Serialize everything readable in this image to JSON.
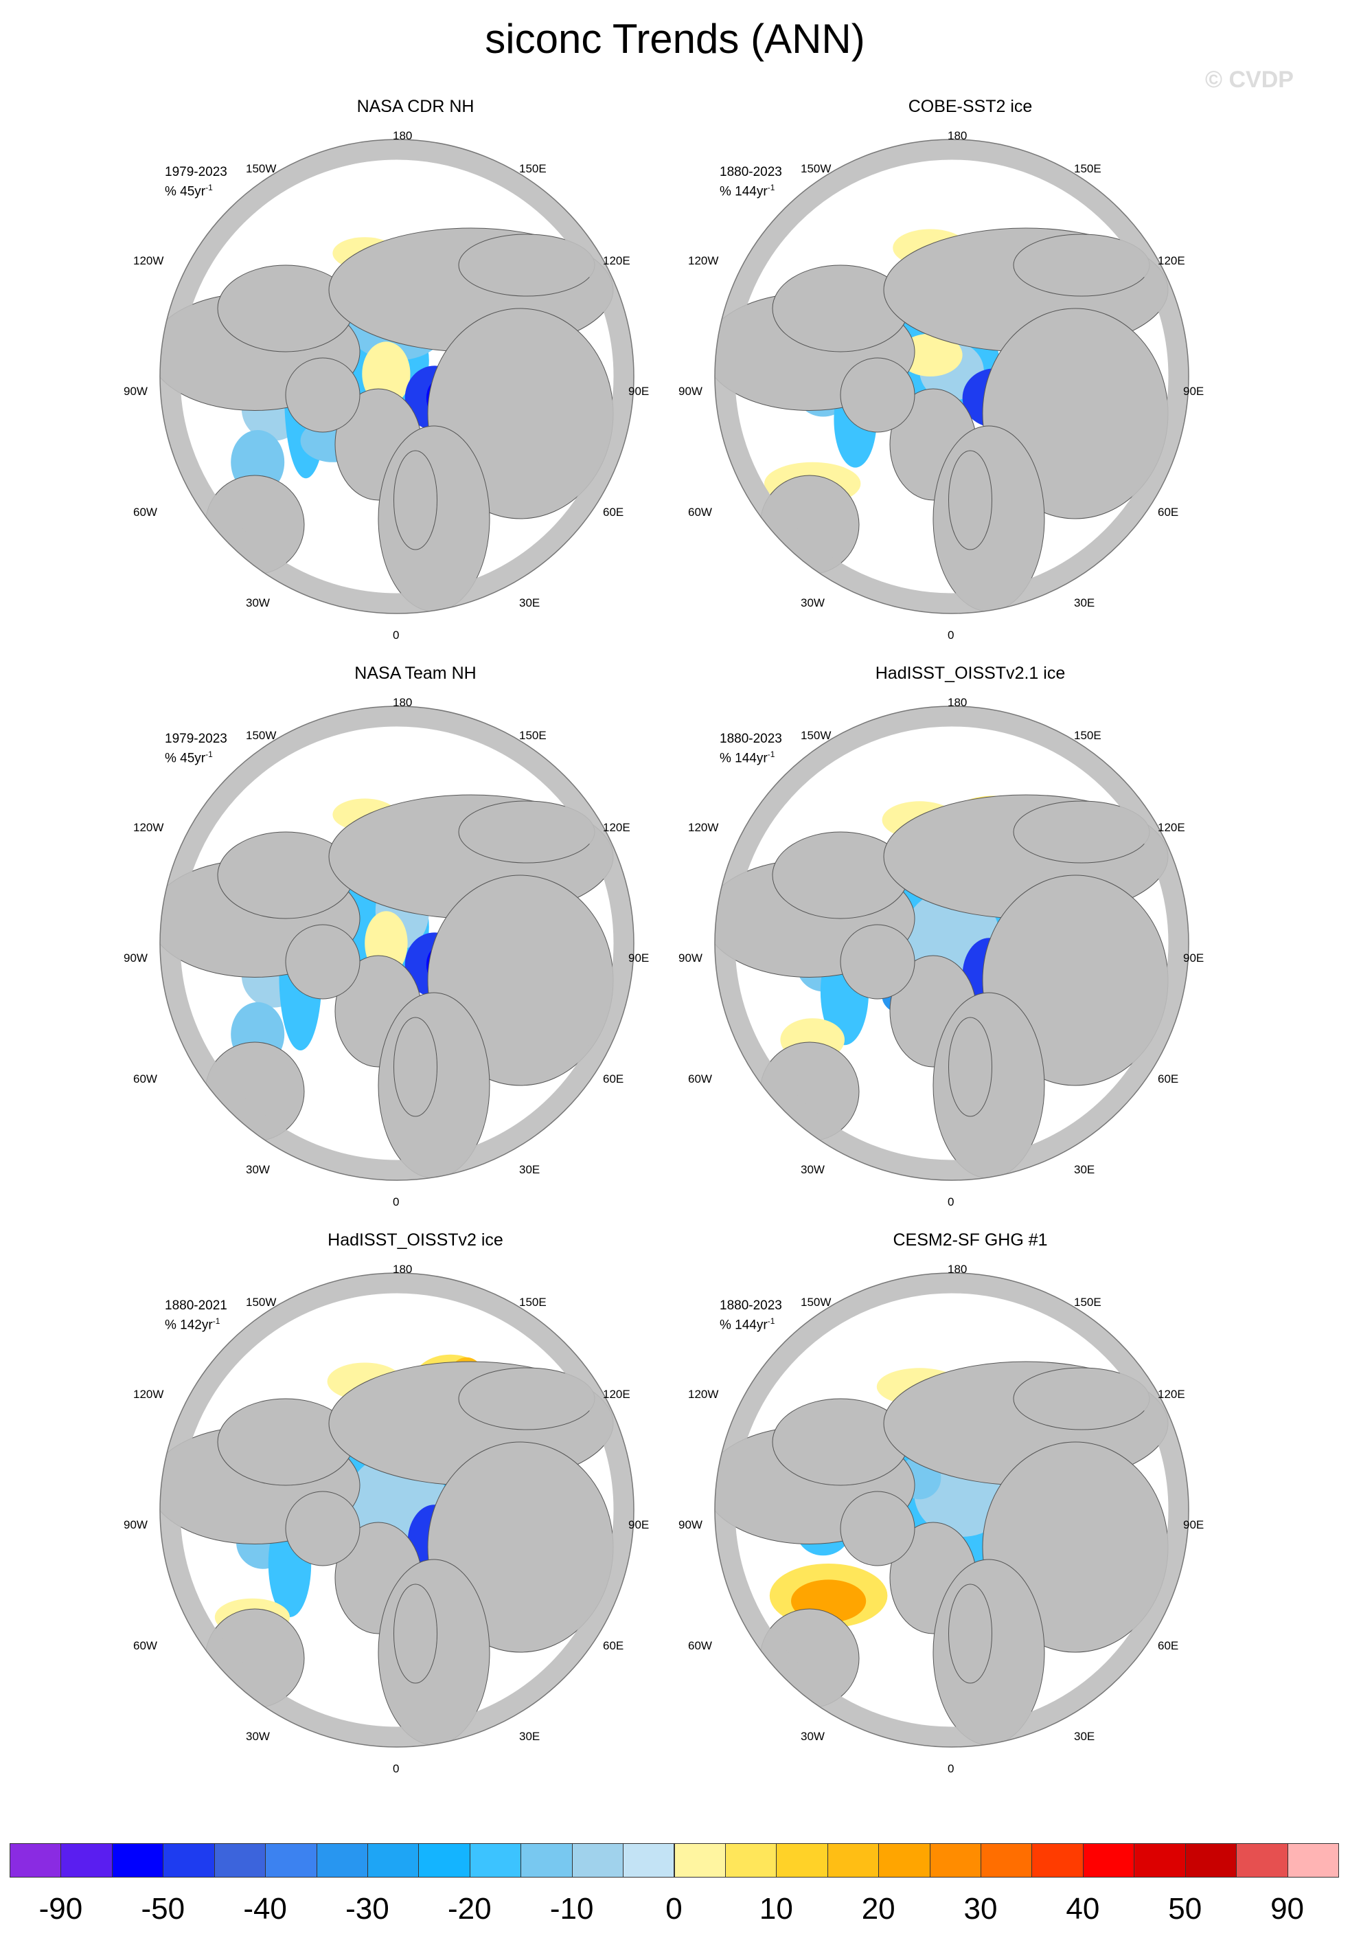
{
  "title": "siconc Trends (ANN)",
  "watermark": "© CVDP",
  "longitude_labels": {
    "top": "180",
    "bottom": "0",
    "upper_left": "150W",
    "upper_right": "150E",
    "left_upper": "120W",
    "right_upper": "120E",
    "left": "90W",
    "right": "90E",
    "left_lower": "60W",
    "right_lower": "60E",
    "lower_left": "30W",
    "lower_right": "30E"
  },
  "panels": [
    {
      "title": "NASA CDR NH",
      "period": "1979-2023",
      "units": "% 45yr",
      "units_exp": "-1",
      "pattern": "cdr"
    },
    {
      "title": "COBE-SST2 ice",
      "period": "1880-2023",
      "units": "% 144yr",
      "units_exp": "-1",
      "pattern": "cobe"
    },
    {
      "title": "NASA Team NH",
      "period": "1979-2023",
      "units": "% 45yr",
      "units_exp": "-1",
      "pattern": "team"
    },
    {
      "title": "HadISST_OISSTv2.1 ice",
      "period": "1880-2023",
      "units": "% 144yr",
      "units_exp": "-1",
      "pattern": "had21"
    },
    {
      "title": "HadISST_OISSTv2 ice",
      "period": "1880-2021",
      "units": "% 142yr",
      "units_exp": "-1",
      "pattern": "had2"
    },
    {
      "title": "CESM2-SF GHG #1",
      "period": "1880-2023",
      "units": "% 144yr",
      "units_exp": "-1",
      "pattern": "cesm"
    }
  ],
  "colorbar": {
    "colors": [
      "#8a2be2",
      "#5a1ef0",
      "#0000ff",
      "#1e3cf0",
      "#3c64dc",
      "#3c82f0",
      "#2896f0",
      "#1ea5f5",
      "#14b4ff",
      "#3cc3ff",
      "#78c8f0",
      "#a0d2ec",
      "#c3e3f5",
      "#fff5a0",
      "#ffe65a",
      "#ffd228",
      "#ffbe14",
      "#ffa500",
      "#ff8c00",
      "#ff6e00",
      "#ff3c00",
      "#ff0000",
      "#dc0000",
      "#c80000",
      "#e65050",
      "#ffb4b4"
    ],
    "labels": [
      "-90",
      "-50",
      "-40",
      "-30",
      "-20",
      "-10",
      "0",
      "10",
      "20",
      "30",
      "40",
      "50",
      "90"
    ]
  }
}
